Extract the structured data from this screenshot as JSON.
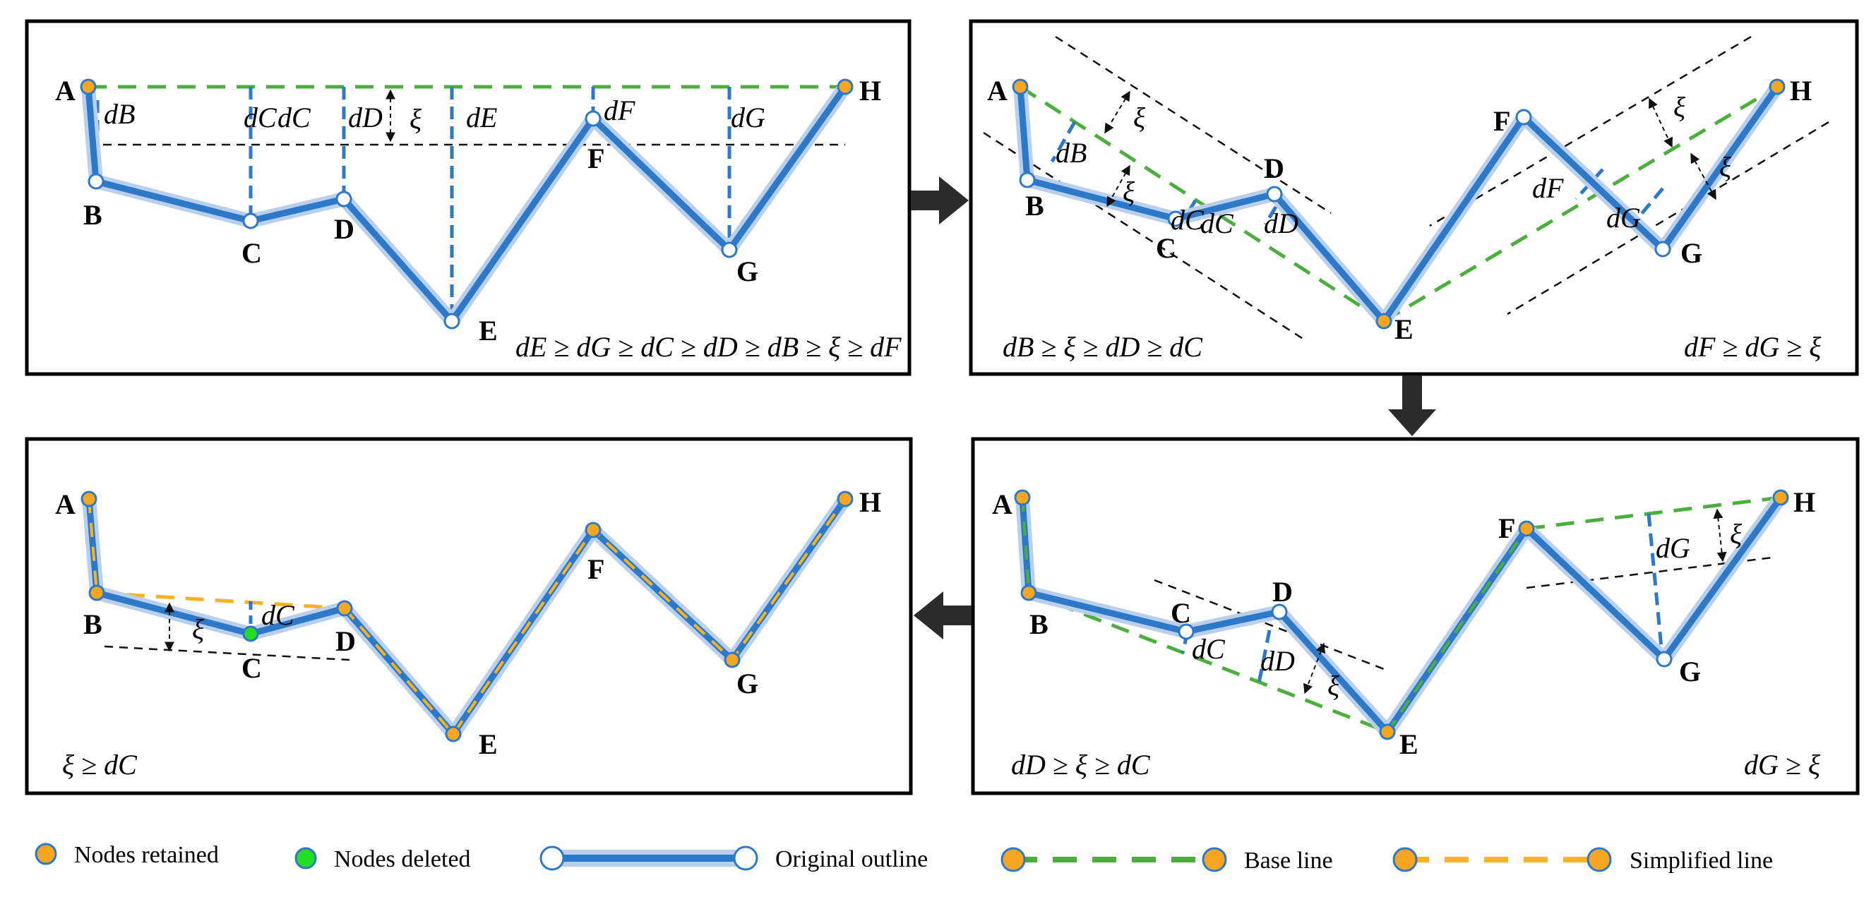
{
  "colors": {
    "retained": "#F5A623",
    "deleted": "#22DD22",
    "original": "#2E78C8",
    "original_glow": "#B9CFEE",
    "base": "#4CAF3D",
    "simplified": "#F9B320",
    "threshold": "#111111"
  },
  "xi": "ξ",
  "panels": [
    {
      "id": "panel-1",
      "condition": "dE ≥ dG ≥ dC ≥ dD ≥ dB ≥ ξ ≥ dF",
      "nodes": [
        {
          "name": "A",
          "state": "retained"
        },
        {
          "name": "B",
          "state": "open"
        },
        {
          "name": "C",
          "state": "open"
        },
        {
          "name": "D",
          "state": "open"
        },
        {
          "name": "E",
          "state": "open"
        },
        {
          "name": "F",
          "state": "open"
        },
        {
          "name": "G",
          "state": "open"
        },
        {
          "name": "H",
          "state": "retained"
        }
      ],
      "distances": [
        "dB",
        "dC",
        "dC",
        "dD",
        "dE",
        "dF",
        "dG"
      ]
    },
    {
      "id": "panel-2",
      "condition_left": "dB ≥ ξ ≥ dD ≥ dC",
      "condition_right": "dF ≥ dG ≥ ξ",
      "nodes": [
        {
          "name": "A",
          "state": "retained"
        },
        {
          "name": "B",
          "state": "open"
        },
        {
          "name": "C",
          "state": "open"
        },
        {
          "name": "D",
          "state": "open"
        },
        {
          "name": "E",
          "state": "retained"
        },
        {
          "name": "F",
          "state": "open"
        },
        {
          "name": "G",
          "state": "open"
        },
        {
          "name": "H",
          "state": "retained"
        }
      ],
      "distances": [
        "dB",
        "dC",
        "dC",
        "dD",
        "dF",
        "dG"
      ]
    },
    {
      "id": "panel-3",
      "condition_left": "dD ≥ ξ ≥ dC",
      "condition_right": "dG ≥ ξ",
      "nodes": [
        {
          "name": "A",
          "state": "retained"
        },
        {
          "name": "B",
          "state": "retained"
        },
        {
          "name": "C",
          "state": "open"
        },
        {
          "name": "D",
          "state": "open"
        },
        {
          "name": "E",
          "state": "retained"
        },
        {
          "name": "F",
          "state": "retained"
        },
        {
          "name": "G",
          "state": "open"
        },
        {
          "name": "H",
          "state": "retained"
        }
      ],
      "distances": [
        "dC",
        "dD",
        "dG"
      ]
    },
    {
      "id": "panel-4",
      "condition": "ξ ≥ dC",
      "nodes": [
        {
          "name": "A",
          "state": "retained"
        },
        {
          "name": "B",
          "state": "retained"
        },
        {
          "name": "C",
          "state": "deleted"
        },
        {
          "name": "D",
          "state": "retained"
        },
        {
          "name": "E",
          "state": "retained"
        },
        {
          "name": "F",
          "state": "retained"
        },
        {
          "name": "G",
          "state": "retained"
        },
        {
          "name": "H",
          "state": "retained"
        }
      ],
      "distances": [
        "dC"
      ]
    }
  ],
  "legend": [
    {
      "label": "Nodes retained",
      "icon": "orange-node-icon"
    },
    {
      "label": "Nodes deleted",
      "icon": "green-node-icon"
    },
    {
      "label": "Original outline",
      "icon": "blue-outline-icon"
    },
    {
      "label": "Base line",
      "icon": "green-dashed-line-icon"
    },
    {
      "label": "Simplified line",
      "icon": "orange-dashed-line-icon"
    }
  ]
}
